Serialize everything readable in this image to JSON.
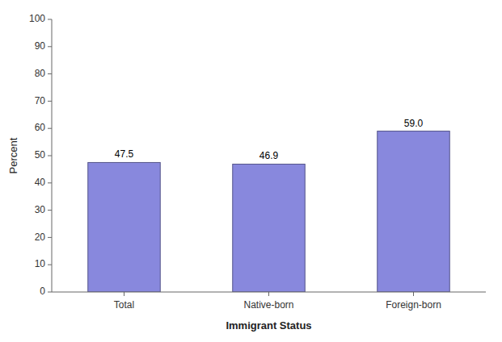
{
  "chart_data": {
    "type": "bar",
    "categories": [
      "Total",
      "Native-born",
      "Foreign-born"
    ],
    "values": [
      47.5,
      46.9,
      59.0
    ],
    "value_labels": [
      "47.5",
      "46.9",
      "59.0"
    ],
    "color": "#8888dd",
    "xlabel": "Immigrant Status",
    "ylabel": "Percent",
    "ylim": [
      0,
      100
    ],
    "yticks": [
      0,
      10,
      20,
      30,
      40,
      50,
      60,
      70,
      80,
      90,
      100
    ],
    "grid": false,
    "data_labels": true
  }
}
